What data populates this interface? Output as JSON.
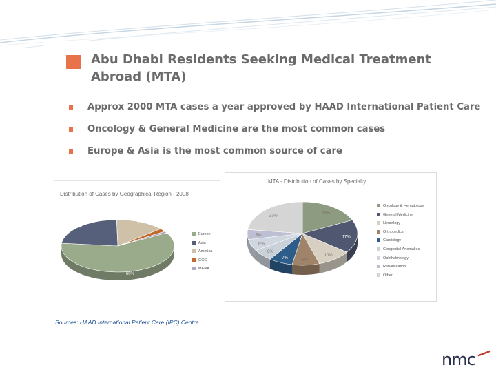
{
  "slide": {
    "title": "Abu Dhabi Residents Seeking Medical Treatment Abroad (MTA)",
    "bullets": [
      "Approx 2000 MTA cases a year approved by HAAD International Patient Care",
      "Oncology & General Medicine are the most common cases",
      "Europe & Asia is the most common source of care"
    ],
    "source": "Sources: HAAD International Patient Care (IPC) Centre",
    "logo_text": "nmc",
    "accent_color": "#e8734a"
  },
  "chart_data": [
    {
      "type": "pie",
      "title": "Distribution of Cases by Geographical Region - 2008",
      "categories": [
        "Europe",
        "Asia",
        "America",
        "GCC",
        "MENA"
      ],
      "values": [
        60,
        23,
        14,
        2,
        1
      ],
      "labels": [
        "60%",
        "23%",
        "14%",
        "2%",
        "1%"
      ],
      "colors": [
        "#9aab8c",
        "#56607a",
        "#cfc1a8",
        "#c06a2e",
        "#b4a8bf"
      ],
      "legend_position": "right"
    },
    {
      "type": "pie",
      "title": "MTA - Distribution of Cases by Specialty",
      "categories": [
        "Oncology & Hematology",
        "General Medicine",
        "Neurology",
        "Orthopedics",
        "Cardiology",
        "Congenital Anomalies",
        "Ophthalmology",
        "Rehabilitation",
        "Other"
      ],
      "values": [
        18,
        17,
        10,
        8,
        7,
        6,
        6,
        5,
        23
      ],
      "labels": [
        "18%",
        "17%",
        "10%",
        "8%",
        "7%",
        "6%",
        "6%",
        "5%",
        "23%"
      ],
      "colors": [
        "#8d9c81",
        "#4f5870",
        "#d6cfc2",
        "#a0846a",
        "#2f5d8a",
        "#c9d1d9",
        "#cfd6e0",
        "#bdbfd2",
        "#d5d5d5"
      ],
      "legend_position": "right"
    }
  ]
}
